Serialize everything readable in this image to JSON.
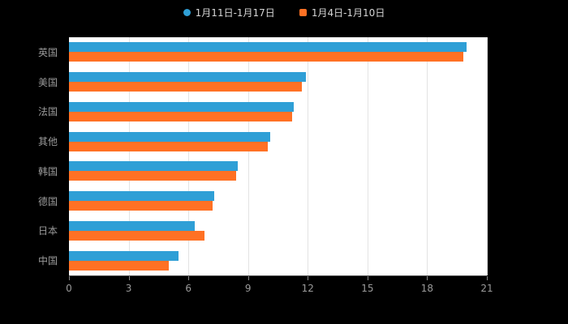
{
  "legend": [
    {
      "label": "1月11日-1月17日",
      "color": "#2f9fd6",
      "shape": "round"
    },
    {
      "label": "1月4日-1月10日",
      "color": "#ff7124",
      "shape": "square"
    }
  ],
  "chart_data": {
    "type": "bar",
    "orientation": "horizontal",
    "title": "",
    "xlabel": "",
    "ylabel": "",
    "categories": [
      "英国",
      "美国",
      "法国",
      "其他",
      "韩国",
      "德国",
      "日本",
      "中国"
    ],
    "series": [
      {
        "name": "1月11日-1月17日",
        "color": "#2f9fd6",
        "values": [
          20.0,
          11.9,
          11.3,
          10.1,
          8.5,
          7.3,
          6.3,
          5.5
        ]
      },
      {
        "name": "1月4日-1月10日",
        "color": "#ff7124",
        "values": [
          19.8,
          11.7,
          11.2,
          10.0,
          8.4,
          7.2,
          6.8,
          5.0
        ]
      }
    ],
    "xlim": [
      0,
      21
    ],
    "xticks": [
      0,
      3,
      6,
      9,
      12,
      15,
      18,
      21
    ],
    "grid": true,
    "legend_position": "top",
    "plot_background": "#ffffff",
    "page_background": "#000000",
    "axis_text_color": "#9a9a9a"
  }
}
